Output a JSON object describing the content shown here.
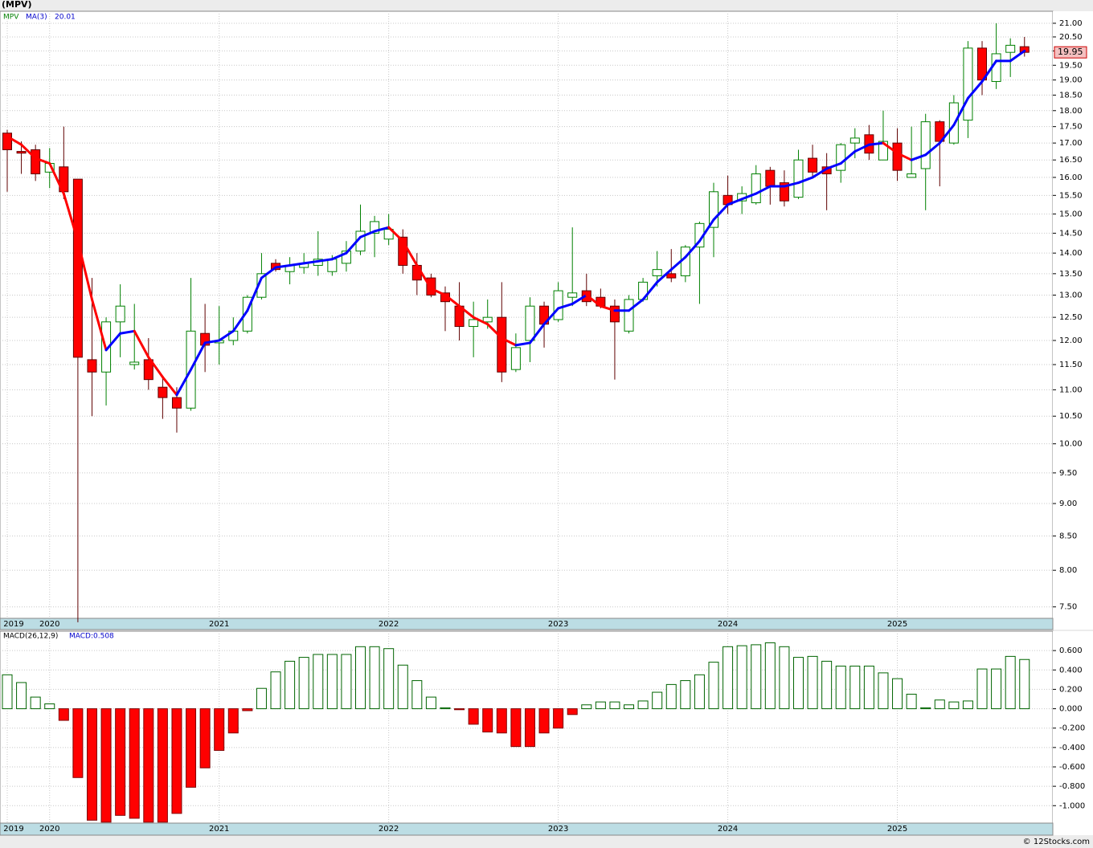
{
  "chart_data": [
    {
      "type": "candlestick",
      "title": "(MPV)",
      "log_scale": true,
      "grid": true,
      "categories": [
        "2019",
        null,
        null,
        "2020",
        null,
        null,
        null,
        null,
        null,
        null,
        null,
        null,
        null,
        null,
        null,
        "2021",
        null,
        null,
        null,
        null,
        null,
        null,
        null,
        null,
        null,
        null,
        null,
        "2022",
        null,
        null,
        null,
        null,
        null,
        null,
        null,
        null,
        null,
        null,
        null,
        "2023",
        null,
        null,
        null,
        null,
        null,
        null,
        null,
        null,
        null,
        null,
        null,
        "2024",
        null,
        null,
        null,
        null,
        null,
        null,
        null,
        null,
        null,
        null,
        null,
        "2025",
        null,
        null,
        null,
        null,
        null,
        null,
        null,
        null,
        null
      ],
      "series": [
        {
          "name": "MPV",
          "color": "#008000",
          "up_color": "#ffffff",
          "down_color": "#ff0000",
          "open": [
            17.3,
            16.75,
            16.8,
            16.15,
            16.3,
            15.95,
            11.6,
            11.35,
            12.4,
            11.5,
            11.6,
            11.05,
            10.85,
            10.65,
            12.15,
            11.95,
            12.0,
            12.2,
            12.95,
            13.75,
            13.55,
            13.65,
            13.7,
            13.55,
            13.75,
            14.05,
            14.5,
            14.35,
            14.4,
            13.7,
            13.4,
            13.05,
            12.75,
            12.3,
            12.4,
            12.5,
            11.4,
            12.0,
            12.75,
            12.45,
            12.95,
            13.1,
            12.95,
            12.75,
            12.2,
            12.9,
            13.45,
            13.5,
            13.45,
            14.15,
            14.65,
            15.5,
            15.35,
            15.3,
            16.2,
            15.85,
            15.45,
            16.55,
            16.3,
            16.2,
            17.0,
            17.25,
            16.5,
            17.0,
            16.0,
            16.25,
            17.65,
            17.0,
            17.7,
            20.1,
            18.95,
            19.95,
            20.15
          ],
          "high": [
            17.4,
            17.05,
            16.95,
            16.85,
            17.5,
            15.95,
            13.4,
            12.5,
            13.25,
            12.8,
            12.05,
            11.25,
            11.05,
            13.4,
            12.8,
            12.75,
            12.5,
            13.0,
            14.0,
            13.85,
            13.9,
            14.0,
            14.55,
            13.95,
            14.3,
            15.25,
            14.95,
            15.0,
            14.6,
            14.0,
            13.5,
            13.2,
            13.3,
            12.85,
            12.9,
            13.3,
            12.15,
            12.95,
            12.85,
            13.3,
            14.65,
            13.5,
            13.15,
            12.9,
            13.0,
            13.4,
            14.05,
            14.1,
            14.2,
            14.8,
            15.85,
            16.05,
            15.75,
            16.35,
            16.3,
            16.2,
            16.8,
            16.95,
            16.7,
            17.0,
            17.45,
            17.55,
            18.0,
            17.45,
            17.5,
            17.9,
            17.7,
            18.5,
            20.35,
            20.35,
            21.0,
            20.45,
            20.5
          ],
          "low": [
            15.6,
            16.1,
            15.9,
            15.7,
            15.4,
            7.3,
            10.5,
            10.7,
            11.65,
            11.4,
            11.0,
            10.45,
            10.2,
            10.6,
            11.35,
            11.5,
            11.9,
            12.15,
            12.9,
            13.55,
            13.25,
            13.5,
            13.45,
            13.45,
            13.55,
            13.95,
            13.9,
            14.2,
            13.5,
            13.0,
            12.95,
            12.2,
            12.0,
            11.65,
            12.25,
            11.15,
            11.35,
            11.55,
            11.85,
            12.4,
            12.75,
            12.75,
            12.7,
            11.2,
            12.15,
            12.85,
            13.2,
            13.3,
            13.3,
            12.8,
            13.9,
            15.0,
            15.0,
            15.25,
            15.25,
            15.2,
            15.4,
            16.0,
            15.1,
            15.85,
            16.55,
            16.5,
            16.5,
            15.9,
            16.0,
            15.1,
            15.75,
            16.95,
            17.15,
            18.5,
            18.7,
            19.1,
            19.8
          ],
          "close": [
            16.8,
            16.7,
            16.1,
            16.4,
            15.6,
            11.65,
            11.35,
            12.4,
            12.75,
            11.55,
            11.2,
            10.85,
            10.65,
            12.2,
            11.9,
            12.0,
            12.2,
            12.95,
            13.5,
            13.6,
            13.7,
            13.75,
            13.85,
            13.85,
            14.05,
            14.55,
            14.8,
            14.6,
            13.7,
            13.35,
            13.0,
            12.85,
            12.3,
            12.45,
            12.5,
            11.35,
            11.85,
            12.75,
            12.35,
            13.1,
            13.05,
            12.85,
            12.75,
            12.4,
            12.9,
            13.3,
            13.6,
            13.4,
            14.15,
            14.75,
            15.6,
            15.25,
            15.55,
            16.1,
            15.75,
            15.35,
            16.5,
            16.15,
            16.1,
            16.95,
            17.15,
            16.7,
            17.05,
            16.2,
            16.1,
            17.65,
            17.05,
            18.25,
            20.1,
            19.0,
            19.9,
            20.2,
            19.95
          ]
        },
        {
          "name": "MA(3)",
          "color": "#0000ff",
          "down_color": "#ff0000",
          "last": 20.01,
          "values": [
            17.2,
            16.95,
            16.55,
            16.4,
            15.55,
            14.3,
            12.9,
            11.8,
            12.15,
            12.2,
            11.65,
            11.25,
            10.9,
            11.4,
            11.95,
            12.0,
            12.2,
            12.65,
            13.4,
            13.65,
            13.7,
            13.75,
            13.8,
            13.85,
            14.0,
            14.4,
            14.55,
            14.65,
            14.3,
            13.7,
            13.15,
            13.0,
            12.75,
            12.5,
            12.35,
            12.05,
            11.9,
            11.95,
            12.35,
            12.7,
            12.8,
            13.0,
            12.75,
            12.65,
            12.65,
            12.9,
            13.3,
            13.6,
            13.9,
            14.3,
            14.85,
            15.25,
            15.4,
            15.55,
            15.75,
            15.75,
            15.85,
            16.0,
            16.25,
            16.4,
            16.75,
            16.95,
            17.0,
            16.7,
            16.5,
            16.65,
            17.0,
            17.55,
            18.4,
            18.95,
            19.65,
            19.65,
            20.0
          ]
        }
      ],
      "ylim": [
        7.35,
        21.45
      ],
      "yticks": [
        {
          "value": 7.5,
          "label": "7.50"
        },
        {
          "value": 8,
          "label": "8.00"
        },
        {
          "value": 8.5,
          "label": "8.50"
        },
        {
          "value": 9,
          "label": "9.00"
        },
        {
          "value": 9.5,
          "label": "9.50"
        },
        {
          "value": 10,
          "label": "10.00"
        },
        {
          "value": 10.5,
          "label": "10.50"
        },
        {
          "value": 11,
          "label": "11.00"
        },
        {
          "value": 11.5,
          "label": "11.50"
        },
        {
          "value": 12,
          "label": "12.00"
        },
        {
          "value": 12.5,
          "label": "12.50"
        },
        {
          "value": 13,
          "label": "13.00"
        },
        {
          "value": 13.5,
          "label": "13.50"
        },
        {
          "value": 14,
          "label": "14.00"
        },
        {
          "value": 14.5,
          "label": "14.50"
        },
        {
          "value": 15,
          "label": "15.00"
        },
        {
          "value": 15.5,
          "label": "15.50"
        },
        {
          "value": 16,
          "label": "16.00"
        },
        {
          "value": 16.5,
          "label": "16.50"
        },
        {
          "value": 17,
          "label": "17.00"
        },
        {
          "value": 17.5,
          "label": "17.50"
        },
        {
          "value": 18,
          "label": "18.00"
        },
        {
          "value": 18.5,
          "label": "18.50"
        },
        {
          "value": 19,
          "label": "19.00"
        },
        {
          "value": 19.5,
          "label": "19.50"
        },
        {
          "value": 20,
          "label": "20.00"
        },
        {
          "value": 20.5,
          "label": "20.50"
        },
        {
          "value": 21,
          "label": "21.00"
        }
      ]
    },
    {
      "type": "bar",
      "title": "MACD(26,12,9)",
      "grid": true,
      "series": [
        {
          "name": "MACD:0.508",
          "color": "#006400",
          "down_color": "#ff0000",
          "values": [
            0.35,
            0.27,
            0.12,
            0.05,
            -0.12,
            -0.71,
            -1.15,
            -1.17,
            -1.1,
            -1.13,
            -1.17,
            -1.17,
            -1.08,
            -0.81,
            -0.61,
            -0.43,
            -0.25,
            -0.02,
            0.21,
            0.38,
            0.49,
            0.53,
            0.56,
            0.56,
            0.56,
            0.64,
            0.64,
            0.62,
            0.45,
            0.29,
            0.12,
            0.01,
            -0.01,
            -0.16,
            -0.24,
            -0.25,
            -0.39,
            -0.39,
            -0.25,
            -0.2,
            -0.06,
            0.04,
            0.07,
            0.07,
            0.04,
            0.08,
            0.17,
            0.25,
            0.29,
            0.35,
            0.48,
            0.64,
            0.65,
            0.66,
            0.68,
            0.64,
            0.53,
            0.54,
            0.49,
            0.44,
            0.44,
            0.44,
            0.37,
            0.31,
            0.15,
            0.01,
            0.09,
            0.07,
            0.08,
            0.41,
            0.41,
            0.54,
            0.508
          ]
        }
      ],
      "ylim": [
        -1.18,
        0.8
      ],
      "yticks": [
        {
          "value": 0.6,
          "label": "0.600"
        },
        {
          "value": 0.4,
          "label": "0.400"
        },
        {
          "value": 0.2,
          "label": "0.200"
        },
        {
          "value": 0,
          "label": "0.000"
        },
        {
          "value": -0.2,
          "label": "-0.200"
        },
        {
          "value": -0.4,
          "label": "-0.400"
        },
        {
          "value": -0.6,
          "label": "-0.600"
        },
        {
          "value": -0.8,
          "label": "-0.800"
        },
        {
          "value": -1,
          "label": "-1.000"
        }
      ]
    }
  ],
  "credit": "© 12Stocks.com"
}
